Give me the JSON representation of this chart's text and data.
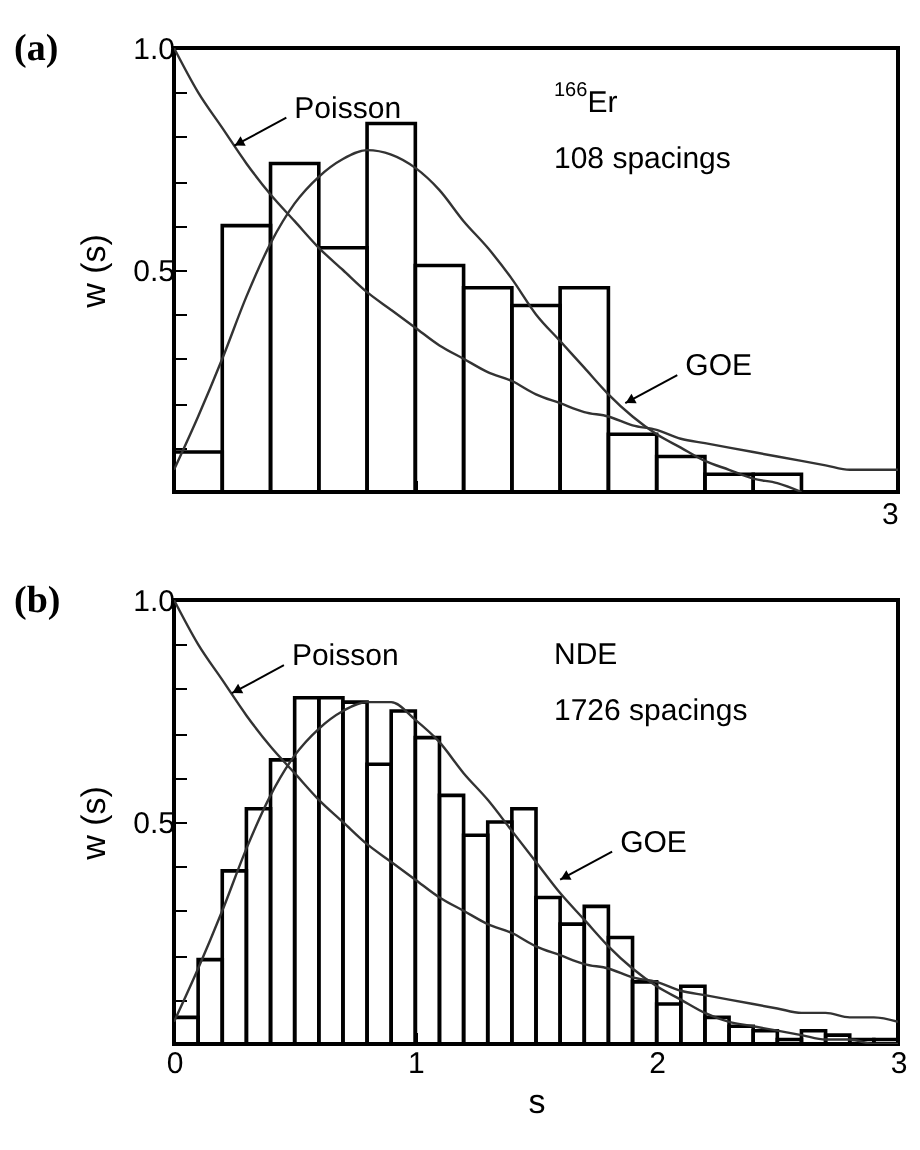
{
  "chart_data": [
    {
      "type": "histogram",
      "title": "(a)",
      "ylabel": "w (s)",
      "color": "#000000",
      "bins": [
        0,
        0.2,
        0.4,
        0.6,
        0.8,
        1.0,
        1.2,
        1.4,
        1.6,
        1.8,
        2.0,
        2.2,
        2.4,
        2.6
      ],
      "values": [
        0.09,
        0.6,
        0.74,
        0.55,
        0.83,
        0.51,
        0.46,
        0.42,
        0.46,
        0.13,
        0.08,
        0.04,
        0.04
      ],
      "series": [
        {
          "type": "line",
          "color": "#333333",
          "x": [
            0,
            0.1,
            0.2,
            0.3,
            0.4,
            0.5,
            0.6,
            0.7,
            0.8,
            0.9,
            1.0,
            1.1,
            1.2,
            1.3,
            1.4,
            1.5,
            1.6,
            1.7,
            1.8,
            1.9,
            2.0,
            2.1,
            2.2,
            2.3,
            2.4,
            2.5,
            2.6,
            2.7,
            2.8,
            2.9,
            3.0
          ],
          "values": [
            1.0,
            0.9,
            0.82,
            0.74,
            0.67,
            0.61,
            0.55,
            0.5,
            0.45,
            0.41,
            0.37,
            0.33,
            0.3,
            0.27,
            0.25,
            0.22,
            0.2,
            0.18,
            0.17,
            0.15,
            0.14,
            0.12,
            0.11,
            0.1,
            0.09,
            0.08,
            0.07,
            0.06,
            0.05,
            0.05,
            0.05
          ]
        },
        {
          "type": "line",
          "color": "#333333",
          "x": [
            0,
            0.1,
            0.2,
            0.3,
            0.4,
            0.5,
            0.6,
            0.7,
            0.8,
            0.9,
            1.0,
            1.1,
            1.2,
            1.3,
            1.4,
            1.5,
            1.6,
            1.7,
            1.8,
            1.9,
            2.0,
            2.1,
            2.2,
            2.3,
            2.4,
            2.5,
            2.6
          ],
          "values": [
            0.05,
            0.17,
            0.3,
            0.44,
            0.56,
            0.65,
            0.71,
            0.75,
            0.77,
            0.76,
            0.73,
            0.68,
            0.61,
            0.55,
            0.48,
            0.4,
            0.34,
            0.28,
            0.22,
            0.17,
            0.13,
            0.1,
            0.07,
            0.05,
            0.03,
            0.02,
            0.0
          ]
        }
      ],
      "annotations": [
        {
          "text": "Poisson",
          "x": 0.25,
          "y": 0.78
        },
        {
          "text": "GOE",
          "x": 1.87,
          "y": 0.2
        },
        "$^{166}$Er",
        "108 spacings",
        "3"
      ],
      "xlim": [
        0,
        3
      ],
      "ylim": [
        0,
        1
      ],
      "tick_labels": "y",
      "xticks": [
        {
          "value": 0,
          "label": null
        },
        {
          "value": 1,
          "label": null
        },
        {
          "value": 2,
          "label": null
        },
        {
          "value": 3,
          "label": null
        }
      ],
      "yticks": [
        {
          "value": 0,
          "label": null
        },
        {
          "value": 0.1,
          "label": null
        },
        {
          "value": 0.2,
          "label": null
        },
        {
          "value": 0.3,
          "label": null
        },
        {
          "value": 0.4,
          "label": null
        },
        0.5,
        {
          "value": 0.6,
          "label": null
        },
        {
          "value": 0.7,
          "label": null
        },
        {
          "value": 0.8,
          "label": null
        },
        {
          "value": 0.9,
          "label": null
        },
        {
          "value": 1.0,
          "label": "1.0"
        }
      ]
    },
    {
      "type": "histogram",
      "title": "(b)",
      "xlabel": "s",
      "ylabel": "w (s)",
      "color": "#000000",
      "bins": [
        0,
        0.1,
        0.2,
        0.3,
        0.4,
        0.5,
        0.6,
        0.7,
        0.8,
        0.9,
        1.0,
        1.1,
        1.2,
        1.3,
        1.4,
        1.5,
        1.6,
        1.7,
        1.8,
        1.9,
        2.0,
        2.1,
        2.2,
        2.3,
        2.4,
        2.5,
        2.6,
        2.7,
        2.8,
        2.9,
        3.0
      ],
      "values": [
        0.06,
        0.19,
        0.39,
        0.53,
        0.64,
        0.78,
        0.78,
        0.77,
        0.63,
        0.75,
        0.69,
        0.56,
        0.47,
        0.5,
        0.53,
        0.33,
        0.27,
        0.31,
        0.24,
        0.14,
        0.09,
        0.13,
        0.06,
        0.04,
        0.03,
        0.01,
        0.03,
        0.02,
        0.01,
        0.01
      ],
      "series": [
        {
          "type": "line",
          "color": "#333333",
          "x": [
            0,
            0.1,
            0.2,
            0.3,
            0.4,
            0.5,
            0.6,
            0.7,
            0.8,
            0.9,
            1.0,
            1.1,
            1.2,
            1.3,
            1.4,
            1.5,
            1.6,
            1.7,
            1.8,
            1.9,
            2.0,
            2.1,
            2.2,
            2.3,
            2.4,
            2.5,
            2.6,
            2.7,
            2.8,
            2.9,
            3.0
          ],
          "values": [
            1.0,
            0.9,
            0.82,
            0.74,
            0.67,
            0.61,
            0.55,
            0.5,
            0.45,
            0.41,
            0.37,
            0.33,
            0.3,
            0.27,
            0.25,
            0.22,
            0.2,
            0.18,
            0.17,
            0.15,
            0.14,
            0.12,
            0.11,
            0.1,
            0.09,
            0.08,
            0.07,
            0.07,
            0.06,
            0.06,
            0.05
          ]
        },
        {
          "type": "line",
          "color": "#333333",
          "x": [
            0,
            0.1,
            0.2,
            0.3,
            0.4,
            0.5,
            0.6,
            0.7,
            0.8,
            0.9,
            1.0,
            1.1,
            1.2,
            1.3,
            1.4,
            1.5,
            1.6,
            1.7,
            1.8,
            1.9,
            2.0,
            2.1,
            2.2,
            2.3,
            2.4,
            2.5,
            2.6,
            2.7,
            2.8,
            2.9,
            3.0
          ],
          "values": [
            0.05,
            0.17,
            0.3,
            0.44,
            0.56,
            0.65,
            0.71,
            0.75,
            0.77,
            0.77,
            0.73,
            0.68,
            0.61,
            0.55,
            0.48,
            0.41,
            0.34,
            0.28,
            0.22,
            0.17,
            0.13,
            0.1,
            0.07,
            0.05,
            0.04,
            0.03,
            0.02,
            0.01,
            0.01,
            0.0,
            0.0
          ]
        }
      ],
      "annotations": [
        {
          "text": "Poisson",
          "x": 0.24,
          "y": 0.79
        },
        {
          "text": "GOE",
          "x": 1.6,
          "y": 0.37
        },
        "NDE",
        "1726 spacings"
      ],
      "xlim": [
        0,
        3
      ],
      "ylim": [
        0,
        1
      ],
      "xticks": [
        0,
        1,
        2,
        3
      ],
      "yticks": [
        {
          "value": 0,
          "label": null
        },
        {
          "value": 0.1,
          "label": null
        },
        {
          "value": 0.2,
          "label": null
        },
        {
          "value": 0.3,
          "label": null
        },
        {
          "value": 0.4,
          "label": null
        },
        0.5,
        {
          "value": 0.6,
          "label": null
        },
        {
          "value": 0.7,
          "label": null
        },
        {
          "value": 0.8,
          "label": null
        },
        {
          "value": 0.9,
          "label": null
        },
        {
          "value": 1.0,
          "label": "1.0"
        }
      ]
    }
  ]
}
